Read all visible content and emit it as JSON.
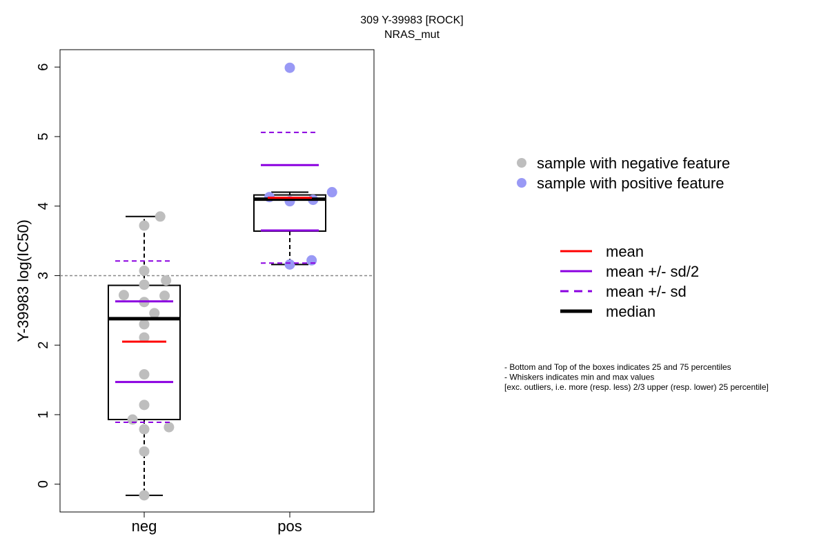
{
  "chart_data": {
    "type": "box",
    "title": "309 Y-39983 [ROCK]",
    "subtitle": "NRAS_mut",
    "xlabel": "",
    "ylabel": "Y-39983 log(IC50)",
    "ylim": [
      -0.4,
      6.25
    ],
    "yticks": [
      0,
      1,
      2,
      3,
      4,
      5,
      6
    ],
    "reference_line": 3,
    "categories": [
      "neg",
      "pos"
    ],
    "groups": [
      {
        "category": "neg",
        "color": "#bebebe",
        "box": {
          "q1": 0.93,
          "median": 2.38,
          "q3": 2.86,
          "whisker_low": -0.16,
          "whisker_high": 3.85
        },
        "mean": 2.05,
        "mean_minus_half_sd": 1.47,
        "mean_plus_half_sd": 2.63,
        "mean_minus_sd": 0.89,
        "mean_plus_sd": 3.21,
        "points": [
          {
            "x": 1.0,
            "y": -0.16
          },
          {
            "x": 1.0,
            "y": 0.47
          },
          {
            "x": 1.0,
            "y": 0.79
          },
          {
            "x": 1.17,
            "y": 0.82
          },
          {
            "x": 0.92,
            "y": 0.93
          },
          {
            "x": 1.0,
            "y": 1.14
          },
          {
            "x": 1.0,
            "y": 1.58
          },
          {
            "x": 1.0,
            "y": 2.11
          },
          {
            "x": 1.0,
            "y": 2.3
          },
          {
            "x": 1.07,
            "y": 2.46
          },
          {
            "x": 1.0,
            "y": 2.62
          },
          {
            "x": 0.86,
            "y": 2.72
          },
          {
            "x": 1.14,
            "y": 2.71
          },
          {
            "x": 1.0,
            "y": 2.87
          },
          {
            "x": 1.15,
            "y": 2.93
          },
          {
            "x": 1.0,
            "y": 3.07
          },
          {
            "x": 1.0,
            "y": 3.72
          },
          {
            "x": 1.11,
            "y": 3.85
          }
        ]
      },
      {
        "category": "pos",
        "color": "#9999f5",
        "box": {
          "q1": 3.64,
          "median": 4.1,
          "q3": 4.16,
          "whisker_low": 3.16,
          "whisker_high": 4.2
        },
        "mean": 4.12,
        "mean_minus_half_sd": 3.65,
        "mean_plus_half_sd": 4.59,
        "mean_minus_sd": 3.18,
        "mean_plus_sd": 5.06,
        "points": [
          {
            "x": 2.0,
            "y": 3.16
          },
          {
            "x": 2.15,
            "y": 3.22
          },
          {
            "x": 2.0,
            "y": 4.07
          },
          {
            "x": 2.16,
            "y": 4.09
          },
          {
            "x": 1.86,
            "y": 4.13
          },
          {
            "x": 2.29,
            "y": 4.2
          },
          {
            "x": 2.0,
            "y": 5.99
          }
        ]
      }
    ],
    "legend_points": [
      {
        "label": "sample with negative feature",
        "color": "#bebebe"
      },
      {
        "label": "sample with positive feature",
        "color": "#9999f5"
      }
    ],
    "legend_lines": [
      {
        "label": "mean",
        "color": "#ff0000",
        "style": "solid",
        "weight": "normal"
      },
      {
        "label": "mean +/- sd/2",
        "color": "#8b00e0",
        "style": "solid",
        "weight": "normal"
      },
      {
        "label": "mean +/- sd",
        "color": "#8b00e0",
        "style": "dashed",
        "weight": "normal"
      },
      {
        "label": "median",
        "color": "#000000",
        "style": "solid",
        "weight": "bold"
      }
    ],
    "notes": [
      "- Bottom and Top of the boxes indicates 25 and 75 percentiles",
      "- Whiskers indicates min and max values",
      "[exc. outliers, i.e. more (resp. less) 2/3 upper (resp. lower) 25 percentile]"
    ]
  }
}
